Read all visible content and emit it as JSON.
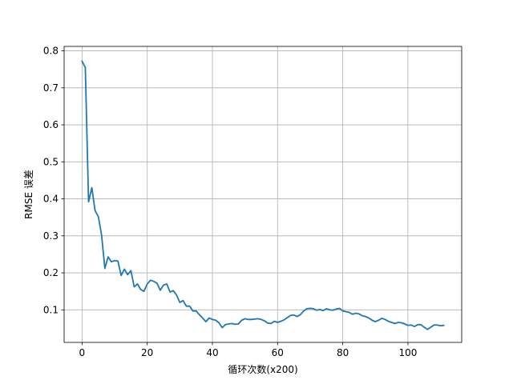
{
  "chart_data": {
    "type": "line",
    "title": "",
    "xlabel": "循环次数(x200)",
    "ylabel": "RMSE 误差",
    "xlim": [
      -5.5,
      116.5
    ],
    "ylim": [
      0.012,
      0.812
    ],
    "xticks": [
      0,
      20,
      40,
      60,
      80,
      100
    ],
    "yticks": [
      0.1,
      0.2,
      0.3,
      0.4,
      0.5,
      0.6,
      0.7,
      0.8
    ],
    "xtick_labels": [
      "0",
      "20",
      "40",
      "60",
      "80",
      "100"
    ],
    "ytick_labels": [
      "0.1",
      "0.2",
      "0.3",
      "0.4",
      "0.5",
      "0.6",
      "0.7",
      "0.8"
    ],
    "grid": true,
    "legend": "none",
    "series": [
      {
        "color": "#1f77b4",
        "x": [
          0,
          1,
          2,
          3,
          4,
          5,
          6,
          7,
          8,
          9,
          10,
          11,
          12,
          13,
          14,
          15,
          16,
          17,
          18,
          19,
          20,
          21,
          22,
          23,
          24,
          25,
          26,
          27,
          28,
          29,
          30,
          31,
          32,
          33,
          34,
          35,
          36,
          37,
          38,
          39,
          40,
          41,
          42,
          43,
          44,
          45,
          46,
          47,
          48,
          49,
          50,
          51,
          52,
          53,
          54,
          55,
          56,
          57,
          58,
          59,
          60,
          61,
          62,
          63,
          64,
          65,
          66,
          67,
          68,
          69,
          70,
          71,
          72,
          73,
          74,
          75,
          76,
          77,
          78,
          79,
          80,
          81,
          82,
          83,
          84,
          85,
          86,
          87,
          88,
          89,
          90,
          91,
          92,
          93,
          94,
          95,
          96,
          97,
          98,
          99,
          100,
          101,
          102,
          103,
          104,
          105,
          106,
          107,
          108,
          109,
          110,
          111
        ],
        "y": [
          0.772,
          0.755,
          0.392,
          0.43,
          0.368,
          0.352,
          0.302,
          0.212,
          0.243,
          0.23,
          0.233,
          0.232,
          0.193,
          0.21,
          0.195,
          0.206,
          0.162,
          0.17,
          0.155,
          0.15,
          0.17,
          0.18,
          0.177,
          0.172,
          0.153,
          0.167,
          0.17,
          0.148,
          0.152,
          0.14,
          0.12,
          0.125,
          0.11,
          0.11,
          0.097,
          0.097,
          0.087,
          0.078,
          0.068,
          0.078,
          0.074,
          0.072,
          0.065,
          0.052,
          0.06,
          0.062,
          0.063,
          0.061,
          0.062,
          0.072,
          0.076,
          0.074,
          0.074,
          0.075,
          0.076,
          0.074,
          0.07,
          0.064,
          0.063,
          0.069,
          0.066,
          0.069,
          0.073,
          0.079,
          0.085,
          0.086,
          0.082,
          0.087,
          0.097,
          0.103,
          0.104,
          0.103,
          0.099,
          0.101,
          0.098,
          0.103,
          0.1,
          0.099,
          0.102,
          0.104,
          0.097,
          0.095,
          0.093,
          0.088,
          0.091,
          0.089,
          0.084,
          0.082,
          0.078,
          0.072,
          0.068,
          0.072,
          0.077,
          0.074,
          0.069,
          0.066,
          0.063,
          0.066,
          0.065,
          0.062,
          0.058,
          0.059,
          0.055,
          0.06,
          0.06,
          0.053,
          0.047,
          0.053,
          0.059,
          0.059,
          0.057,
          0.058
        ]
      }
    ]
  }
}
